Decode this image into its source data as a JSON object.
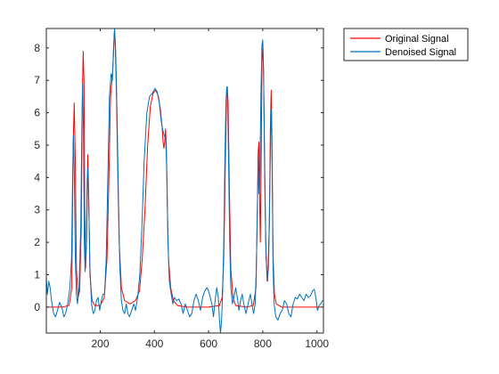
{
  "chart_data": {
    "type": "line",
    "xlim": [
      1,
      1024
    ],
    "ylim": [
      -0.8,
      8.6
    ],
    "xticks": [
      200,
      400,
      600,
      800,
      1000
    ],
    "yticks": [
      0,
      1,
      2,
      3,
      4,
      5,
      6,
      7,
      8
    ],
    "grid": false,
    "legend_position": "outside-top-right",
    "series": [
      {
        "name": "Original Signal",
        "color": "#ff0000",
        "points": [
          [
            1,
            0
          ],
          [
            60,
            0
          ],
          [
            85,
            0.05
          ],
          [
            95,
            0.6
          ],
          [
            100,
            5
          ],
          [
            104,
            6.3
          ],
          [
            108,
            4.5
          ],
          [
            112,
            1.2
          ],
          [
            118,
            0.3
          ],
          [
            124,
            0.5
          ],
          [
            130,
            2.5
          ],
          [
            134,
            6.5
          ],
          [
            137,
            7.9
          ],
          [
            140,
            7
          ],
          [
            143,
            3
          ],
          [
            146,
            1.2
          ],
          [
            150,
            2.2
          ],
          [
            154,
            4.7
          ],
          [
            157,
            3.6
          ],
          [
            162,
            1
          ],
          [
            170,
            0.2
          ],
          [
            180,
            0.05
          ],
          [
            200,
            0.05
          ],
          [
            215,
            0.3
          ],
          [
            225,
            1.5
          ],
          [
            232,
            4
          ],
          [
            238,
            6.5
          ],
          [
            243,
            7
          ],
          [
            246,
            7.3
          ],
          [
            249,
            7.8
          ],
          [
            252,
            8.5
          ],
          [
            255,
            8.2
          ],
          [
            260,
            6.5
          ],
          [
            265,
            4
          ],
          [
            270,
            2
          ],
          [
            278,
            0.6
          ],
          [
            290,
            0.2
          ],
          [
            310,
            0.1
          ],
          [
            330,
            0.2
          ],
          [
            345,
            0.5
          ],
          [
            355,
            1.5
          ],
          [
            365,
            3
          ],
          [
            375,
            5
          ],
          [
            385,
            6.2
          ],
          [
            395,
            6.6
          ],
          [
            405,
            6.7
          ],
          [
            415,
            6.5
          ],
          [
            422,
            6.1
          ],
          [
            428,
            5.6
          ],
          [
            432,
            5.1
          ],
          [
            435,
            4.9
          ],
          [
            438,
            5.1
          ],
          [
            441,
            5.5
          ],
          [
            444,
            5
          ],
          [
            448,
            3
          ],
          [
            452,
            1.5
          ],
          [
            460,
            0.6
          ],
          [
            470,
            0.2
          ],
          [
            485,
            0.05
          ],
          [
            520,
            0
          ],
          [
            600,
            0
          ],
          [
            640,
            0.05
          ],
          [
            650,
            0.3
          ],
          [
            656,
            1.5
          ],
          [
            662,
            4.5
          ],
          [
            666,
            6.4
          ],
          [
            669,
            6.8
          ],
          [
            672,
            6.3
          ],
          [
            677,
            3.5
          ],
          [
            682,
            1.2
          ],
          [
            690,
            0.3
          ],
          [
            700,
            0.05
          ],
          [
            740,
            0
          ],
          [
            765,
            0.05
          ],
          [
            775,
            0.6
          ],
          [
            780,
            3
          ],
          [
            783,
            4.8
          ],
          [
            786,
            5.1
          ],
          [
            789,
            3
          ],
          [
            791,
            2
          ],
          [
            794,
            4.5
          ],
          [
            797,
            7.5
          ],
          [
            800,
            8.1
          ],
          [
            803,
            7.3
          ],
          [
            807,
            4
          ],
          [
            812,
            1.5
          ],
          [
            818,
            0.8
          ],
          [
            824,
            2.5
          ],
          [
            828,
            5.5
          ],
          [
            831,
            6.7
          ],
          [
            834,
            5.2
          ],
          [
            838,
            1.6
          ],
          [
            843,
            0.4
          ],
          [
            850,
            0.1
          ],
          [
            870,
            0
          ],
          [
            1024,
            0
          ]
        ]
      },
      {
        "name": "Denoised Signal",
        "color": "#0072bd",
        "points": [
          [
            1,
            0.9
          ],
          [
            5,
            0.4
          ],
          [
            10,
            0.8
          ],
          [
            15,
            0.6
          ],
          [
            20,
            0.2
          ],
          [
            28,
            -0.2
          ],
          [
            35,
            -0.3
          ],
          [
            42,
            -0.1
          ],
          [
            50,
            0.15
          ],
          [
            58,
            0
          ],
          [
            66,
            -0.3
          ],
          [
            72,
            -0.2
          ],
          [
            80,
            0.1
          ],
          [
            88,
            0.6
          ],
          [
            94,
            1.5
          ],
          [
            98,
            4
          ],
          [
            101,
            5.3
          ],
          [
            104,
            4.3
          ],
          [
            108,
            1.5
          ],
          [
            112,
            0.4
          ],
          [
            116,
            0.1
          ],
          [
            122,
            0.6
          ],
          [
            128,
            2.5
          ],
          [
            132,
            5.5
          ],
          [
            135,
            6.9
          ],
          [
            138,
            5.5
          ],
          [
            141,
            2
          ],
          [
            144,
            1.1
          ],
          [
            148,
            1.8
          ],
          [
            152,
            4
          ],
          [
            155,
            4.3
          ],
          [
            158,
            3
          ],
          [
            162,
            1.2
          ],
          [
            168,
            0.1
          ],
          [
            174,
            -0.2
          ],
          [
            180,
            -0.1
          ],
          [
            186,
            0.2
          ],
          [
            192,
            0.3
          ],
          [
            198,
            -0.1
          ],
          [
            204,
            0.2
          ],
          [
            210,
            0.4
          ],
          [
            216,
            0.4
          ],
          [
            222,
            1.5
          ],
          [
            228,
            4
          ],
          [
            234,
            6.5
          ],
          [
            240,
            7.2
          ],
          [
            245,
            7
          ],
          [
            249,
            8
          ],
          [
            253,
            8.6
          ],
          [
            257,
            7.9
          ],
          [
            262,
            6
          ],
          [
            267,
            3.5
          ],
          [
            272,
            1.3
          ],
          [
            278,
            0.2
          ],
          [
            284,
            -0.1
          ],
          [
            290,
            -0.2
          ],
          [
            296,
            0.1
          ],
          [
            302,
            -0.2
          ],
          [
            308,
            -0.3
          ],
          [
            316,
            -0.1
          ],
          [
            324,
            0.1
          ],
          [
            330,
            -0.1
          ],
          [
            338,
            0.3
          ],
          [
            346,
            1
          ],
          [
            354,
            2.5
          ],
          [
            362,
            4.5
          ],
          [
            372,
            6
          ],
          [
            382,
            6.5
          ],
          [
            392,
            6.6
          ],
          [
            402,
            6.75
          ],
          [
            410,
            6.65
          ],
          [
            418,
            6.3
          ],
          [
            424,
            5.8
          ],
          [
            430,
            5.5
          ],
          [
            436,
            5.3
          ],
          [
            442,
            5.2
          ],
          [
            446,
            4
          ],
          [
            450,
            2
          ],
          [
            455,
            0.8
          ],
          [
            462,
            0.4
          ],
          [
            468,
            0.1
          ],
          [
            474,
            0.3
          ],
          [
            482,
            0.2
          ],
          [
            490,
            0.25
          ],
          [
            498,
            0.1
          ],
          [
            506,
            -0.2
          ],
          [
            514,
            0.1
          ],
          [
            522,
            -0.1
          ],
          [
            530,
            -0.3
          ],
          [
            538,
            -0.2
          ],
          [
            546,
            0.2
          ],
          [
            554,
            0.4
          ],
          [
            562,
            0.2
          ],
          [
            570,
            -0.1
          ],
          [
            578,
            0.3
          ],
          [
            586,
            0.5
          ],
          [
            594,
            0.6
          ],
          [
            600,
            0.5
          ],
          [
            606,
            0.3
          ],
          [
            612,
            0.1
          ],
          [
            618,
            -0.3
          ],
          [
            624,
            0.2
          ],
          [
            630,
            0.6
          ],
          [
            636,
            0.3
          ],
          [
            640,
            -0.4
          ],
          [
            644,
            -0.8
          ],
          [
            648,
            -0.4
          ],
          [
            652,
            0.5
          ],
          [
            656,
            2
          ],
          [
            660,
            4.5
          ],
          [
            664,
            6.3
          ],
          [
            667,
            6.8
          ],
          [
            670,
            6.5
          ],
          [
            674,
            4.3
          ],
          [
            678,
            2
          ],
          [
            682,
            0.6
          ],
          [
            688,
            0.1
          ],
          [
            694,
            0.3
          ],
          [
            700,
            0.6
          ],
          [
            706,
            0.3
          ],
          [
            712,
            -0.1
          ],
          [
            718,
            0.2
          ],
          [
            724,
            0.4
          ],
          [
            730,
            0.1
          ],
          [
            738,
            -0.2
          ],
          [
            746,
            0.1
          ],
          [
            754,
            0.4
          ],
          [
            760,
            0.1
          ],
          [
            766,
            -0.2
          ],
          [
            772,
            0.1
          ],
          [
            776,
            1.2
          ],
          [
            780,
            3
          ],
          [
            783,
            4.6
          ],
          [
            786,
            3.5
          ],
          [
            789,
            3.8
          ],
          [
            793,
            6.5
          ],
          [
            797,
            8.1
          ],
          [
            800,
            8.25
          ],
          [
            803,
            7.2
          ],
          [
            807,
            4.5
          ],
          [
            811,
            2
          ],
          [
            816,
            0.8
          ],
          [
            821,
            1.2
          ],
          [
            825,
            3
          ],
          [
            829,
            5.3
          ],
          [
            832,
            6.1
          ],
          [
            835,
            4
          ],
          [
            838,
            1.2
          ],
          [
            842,
            0.1
          ],
          [
            848,
            -0.3
          ],
          [
            856,
            -0.4
          ],
          [
            864,
            -0.2
          ],
          [
            872,
            -0.1
          ],
          [
            880,
            0.2
          ],
          [
            888,
            0.1
          ],
          [
            896,
            -0.2
          ],
          [
            904,
            -0.3
          ],
          [
            912,
            0.1
          ],
          [
            920,
            0.3
          ],
          [
            928,
            0.25
          ],
          [
            936,
            0.4
          ],
          [
            944,
            0.3
          ],
          [
            952,
            0.2
          ],
          [
            960,
            0.4
          ],
          [
            968,
            0.3
          ],
          [
            976,
            0.35
          ],
          [
            984,
            0.5
          ],
          [
            990,
            0.55
          ],
          [
            996,
            0.3
          ],
          [
            1002,
            -0.1
          ],
          [
            1008,
            0.05
          ],
          [
            1014,
            0.1
          ],
          [
            1020,
            0.2
          ],
          [
            1024,
            0.2
          ]
        ]
      }
    ]
  }
}
